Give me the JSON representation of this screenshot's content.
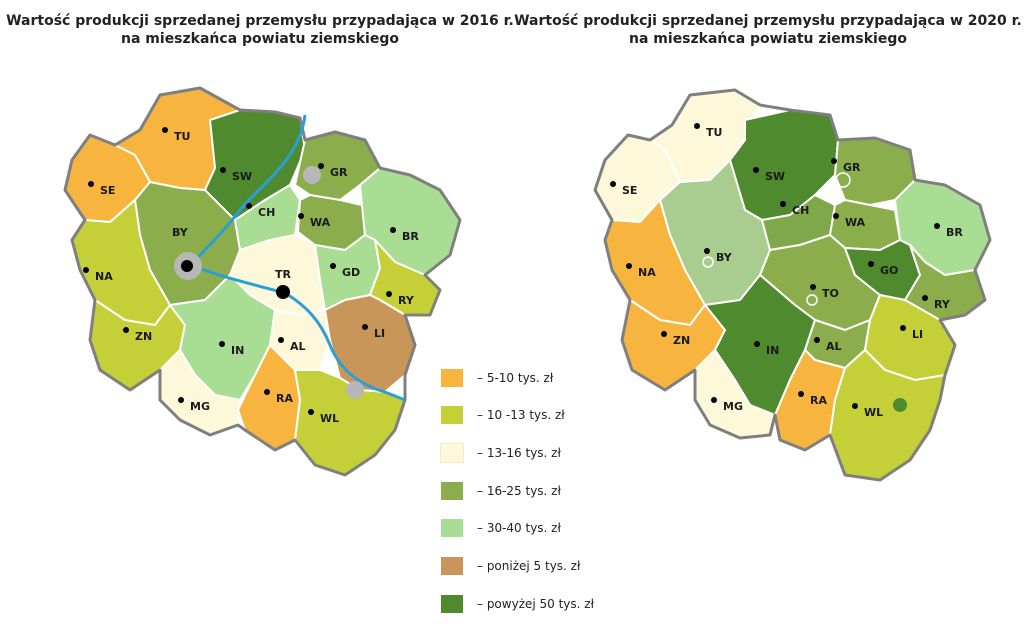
{
  "map_left": {
    "title_line1": "Wartość produkcji sprzedanej przemysłu przypadająca w 2016 r.",
    "title_line2": "na mieszkańca powiatu ziemskiego",
    "counties": [
      {
        "code": "TU",
        "category": "5-10"
      },
      {
        "code": "SE",
        "category": "5-10"
      },
      {
        "code": "SW",
        "category": "50+"
      },
      {
        "code": "GR",
        "category": "16-25"
      },
      {
        "code": "BY",
        "category": "16-25"
      },
      {
        "code": "CH",
        "category": "30-40"
      },
      {
        "code": "WA",
        "category": "16-25"
      },
      {
        "code": "BR",
        "category": "30-40"
      },
      {
        "code": "NA",
        "category": "10-13"
      },
      {
        "code": "TR",
        "category": "13-16"
      },
      {
        "code": "GD",
        "category": "30-40"
      },
      {
        "code": "RY",
        "category": "10-13"
      },
      {
        "code": "ZN",
        "category": "10-13"
      },
      {
        "code": "IN",
        "category": "30-40"
      },
      {
        "code": "AL",
        "category": "13-16"
      },
      {
        "code": "LI",
        "category": "<5"
      },
      {
        "code": "MG",
        "category": "13-16"
      },
      {
        "code": "RA",
        "category": "5-10"
      },
      {
        "code": "WL",
        "category": "10-13"
      }
    ]
  },
  "map_right": {
    "title_line1": "Wartość produkcji sprzedanej przemysłu przypadająca w 2020 r.",
    "title_line2": "na mieszkańca powiatu ziemskiego",
    "counties": [
      {
        "code": "TU",
        "category": "13-16"
      },
      {
        "code": "SE",
        "category": "13-16"
      },
      {
        "code": "SW",
        "category": "50+"
      },
      {
        "code": "GR",
        "category": "16-25"
      },
      {
        "code": "BY",
        "category": "30-40"
      },
      {
        "code": "CH",
        "category": "16-25"
      },
      {
        "code": "WA",
        "category": "16-25"
      },
      {
        "code": "BR",
        "category": "30-40"
      },
      {
        "code": "NA",
        "category": "5-10"
      },
      {
        "code": "TO",
        "category": "16-25"
      },
      {
        "code": "GO",
        "category": "50+"
      },
      {
        "code": "RY",
        "category": "16-25"
      },
      {
        "code": "ZN",
        "category": "5-10"
      },
      {
        "code": "IN",
        "category": "50+"
      },
      {
        "code": "AL",
        "category": "16-25"
      },
      {
        "code": "LI",
        "category": "10-13"
      },
      {
        "code": "MG",
        "category": "13-16"
      },
      {
        "code": "RA",
        "category": "5-10"
      },
      {
        "code": "WL",
        "category": "10-13"
      }
    ]
  },
  "legend": [
    {
      "key": "5-10",
      "label": "– 5-10 tys. zł",
      "color": "#f7b53f"
    },
    {
      "key": "10-13",
      "label": "– 10 -13 tys. zł",
      "color": "#c5d038"
    },
    {
      "key": "13-16",
      "label": "– 13-16 tys. zł",
      "color": "#fdf8d9"
    },
    {
      "key": "16-25",
      "label": "– 16-25 tys. zł",
      "color": "#8bad4b"
    },
    {
      "key": "30-40",
      "label": "– 30-40 tys. zł",
      "color": "#a9dd93"
    },
    {
      "key": "<5",
      "label": "– poniżej 5 tys. zł",
      "color": "#c89659"
    },
    {
      "key": "50+",
      "label": "– powyżej  50 tys. zł",
      "color": "#4f8a2e"
    }
  ],
  "colors": {
    "outline": "#7f7f7f",
    "river": "#2a9fd6",
    "city": "#b7b7b7",
    "by_2020": "#a8cd8e",
    "ch_2020": "#7fa84a"
  }
}
